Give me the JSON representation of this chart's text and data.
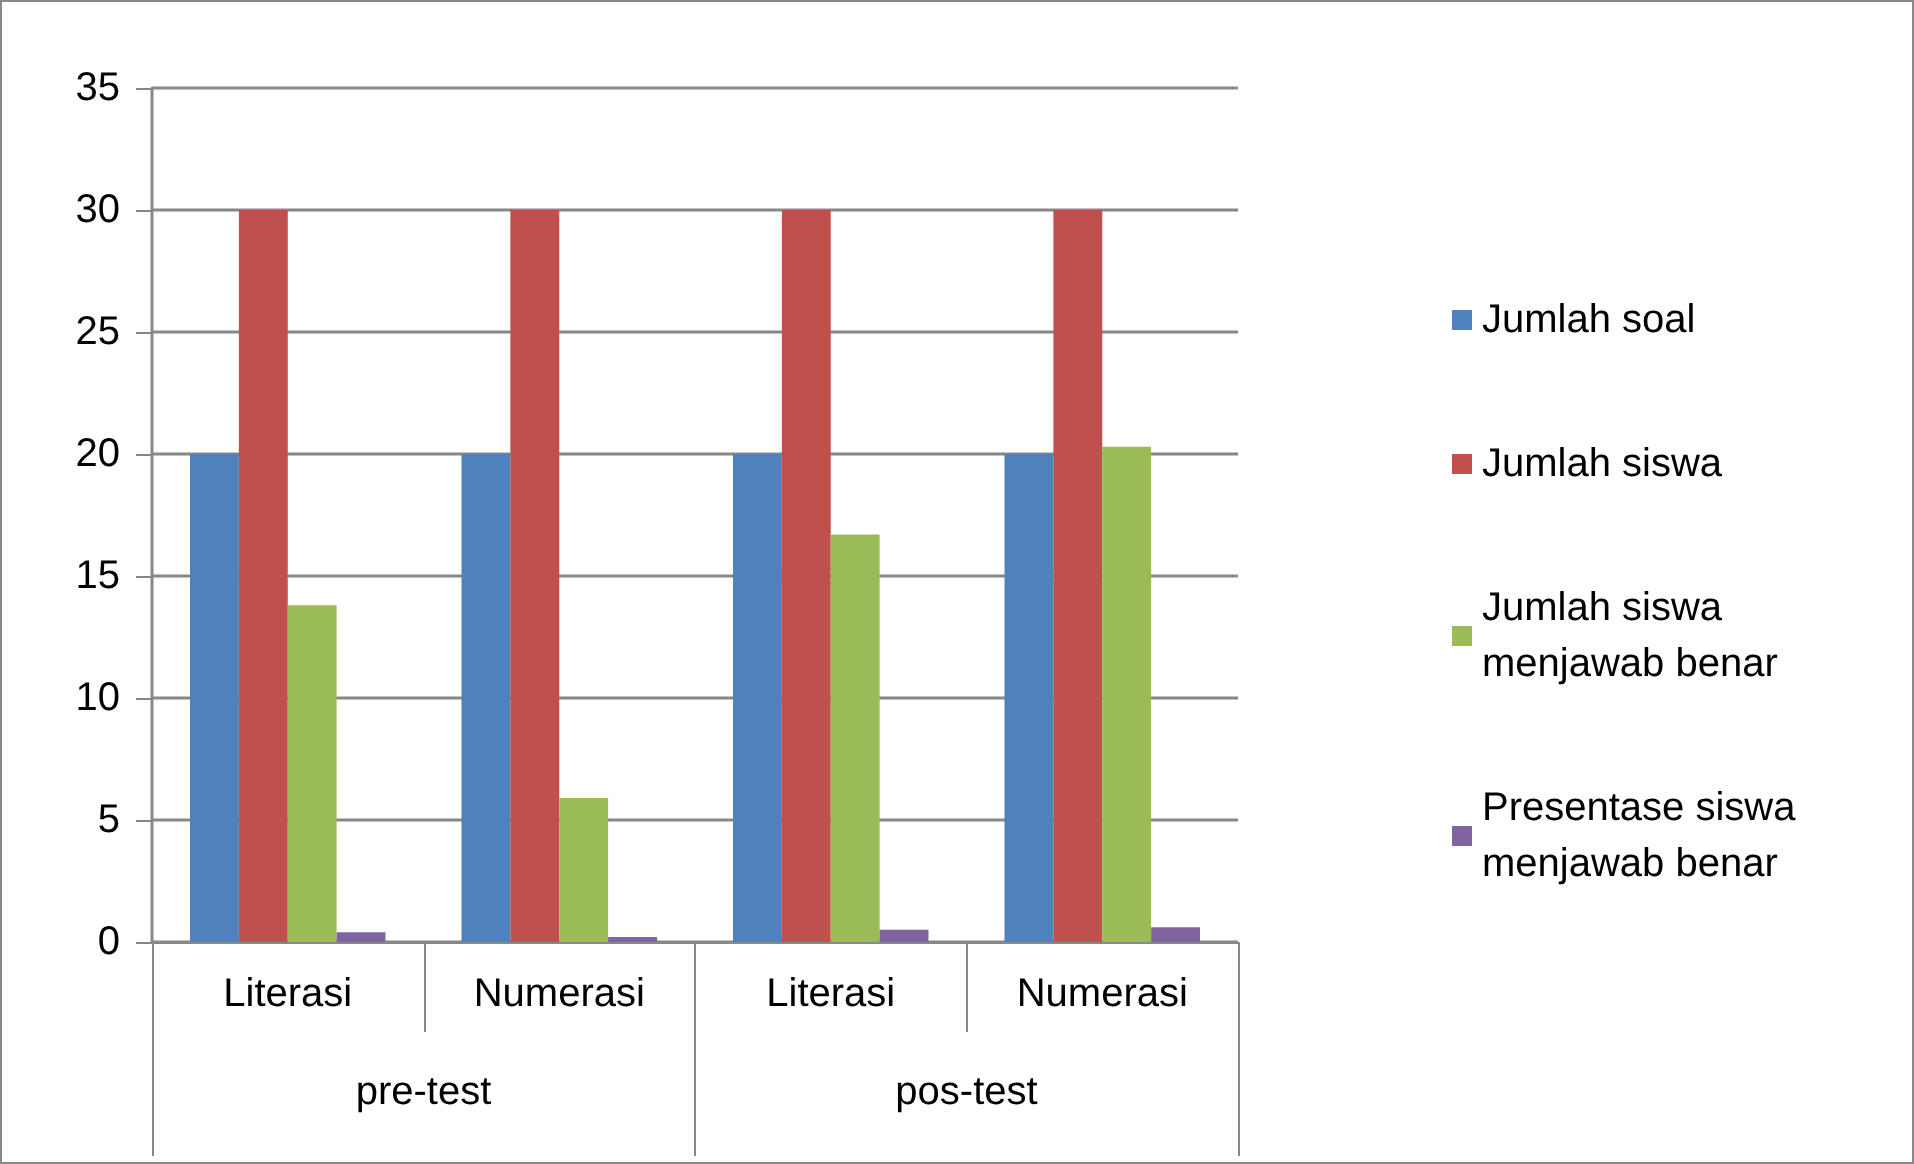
{
  "chart_data": {
    "type": "bar",
    "categories": [
      "Literasi",
      "Numerasi",
      "Literasi",
      "Numerasi"
    ],
    "series": [
      {
        "name": "Jumlah soal",
        "color": "#4f81bd",
        "values": [
          20,
          20,
          20,
          20
        ]
      },
      {
        "name": "Jumlah siswa",
        "color": "#c0504d",
        "values": [
          30,
          30,
          30,
          30
        ]
      },
      {
        "name": "Jumlah siswa menjawab benar",
        "color": "#9bbb59",
        "values": [
          13.8,
          5.9,
          16.7,
          20.3
        ]
      },
      {
        "name": "Presentase siswa menjawab benar",
        "color": "#8064a2",
        "values": [
          0.4,
          0.2,
          0.5,
          0.6
        ]
      }
    ],
    "annotations": [
      "pre-test",
      "pos-test"
    ],
    "ylim": [
      0,
      35
    ],
    "yticks": [
      0,
      5,
      10,
      15,
      20,
      25,
      30,
      35
    ],
    "grid": "y",
    "legend": "right"
  }
}
